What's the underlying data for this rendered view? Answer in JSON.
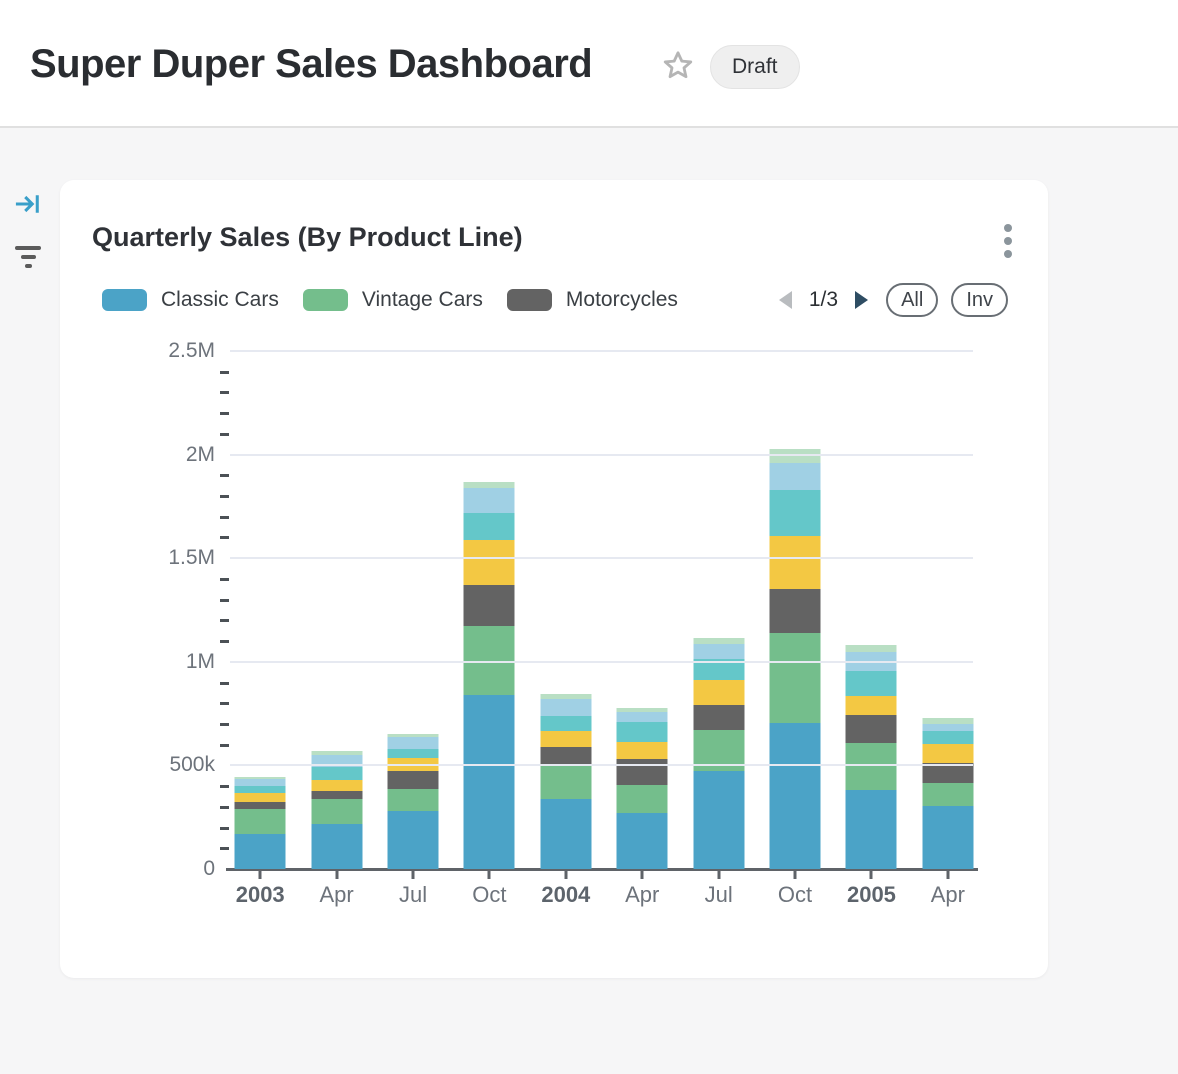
{
  "header": {
    "title": "Super Duper Sales Dashboard",
    "badge": "Draft"
  },
  "card": {
    "title": "Quarterly Sales (By Product Line)",
    "pagination": {
      "label": "1/3"
    },
    "buttons": {
      "all": "All",
      "invert": "Inv"
    }
  },
  "colors": {
    "accent_blue": "#399fc9",
    "arrow_prev_disabled": "#b9bcbf",
    "arrow_next": "#2e4d63",
    "gridline": "#e6e9f1",
    "axis": "#5f6368"
  },
  "chart_data": {
    "type": "bar",
    "stacked": true,
    "title": "Quarterly Sales (By Product Line)",
    "values_unit": "thousands",
    "ylim": [
      0,
      2500
    ],
    "grid": true,
    "legend_position": "top",
    "legend_page": "1/3",
    "y_ticks": [
      {
        "label": "2.5M",
        "value": 2500
      },
      {
        "label": "2M",
        "value": 2000
      },
      {
        "label": "1.5M",
        "value": 1500
      },
      {
        "label": "1M",
        "value": 1000
      },
      {
        "label": "500k",
        "value": 500
      },
      {
        "label": "0",
        "value": 0
      }
    ],
    "categories": [
      {
        "label": "2003",
        "year": true
      },
      {
        "label": "Apr",
        "year": false
      },
      {
        "label": "Jul",
        "year": false
      },
      {
        "label": "Oct",
        "year": false
      },
      {
        "label": "2004",
        "year": true
      },
      {
        "label": "Apr",
        "year": false
      },
      {
        "label": "Jul",
        "year": false
      },
      {
        "label": "Oct",
        "year": false
      },
      {
        "label": "2005",
        "year": true
      },
      {
        "label": "Apr",
        "year": false
      }
    ],
    "series": [
      {
        "name": "Classic Cars",
        "color": "#4ba3c7",
        "in_legend": true,
        "values": [
          170,
          215,
          280,
          840,
          340,
          270,
          475,
          705,
          380,
          305
        ]
      },
      {
        "name": "Vintage Cars",
        "color": "#74be8c",
        "in_legend": true,
        "values": [
          120,
          125,
          105,
          335,
          155,
          135,
          195,
          435,
          230,
          110
        ]
      },
      {
        "name": "Motorcycles",
        "color": "#636363",
        "in_legend": true,
        "values": [
          35,
          38,
          88,
          195,
          95,
          127,
          124,
          210,
          135,
          97
        ]
      },
      {
        "name": "",
        "color": "#f3c843",
        "in_legend": false,
        "values": [
          42,
          52,
          61,
          217,
          75,
          80,
          116,
          259,
          90,
          92
        ]
      },
      {
        "name": "",
        "color": "#64c7c9",
        "in_legend": false,
        "values": [
          32,
          64,
          46,
          132,
          72,
          97,
          106,
          221,
          119,
          64
        ]
      },
      {
        "name": "",
        "color": "#a0d0e4",
        "in_legend": false,
        "values": [
          34,
          58,
          58,
          118,
          84,
          48,
          72,
          132,
          93,
          34
        ]
      },
      {
        "name": "",
        "color": "#b9dfc4",
        "in_legend": false,
        "values": [
          13,
          16,
          16,
          32,
          24,
          18,
          28,
          65,
          32,
          28
        ]
      }
    ]
  }
}
